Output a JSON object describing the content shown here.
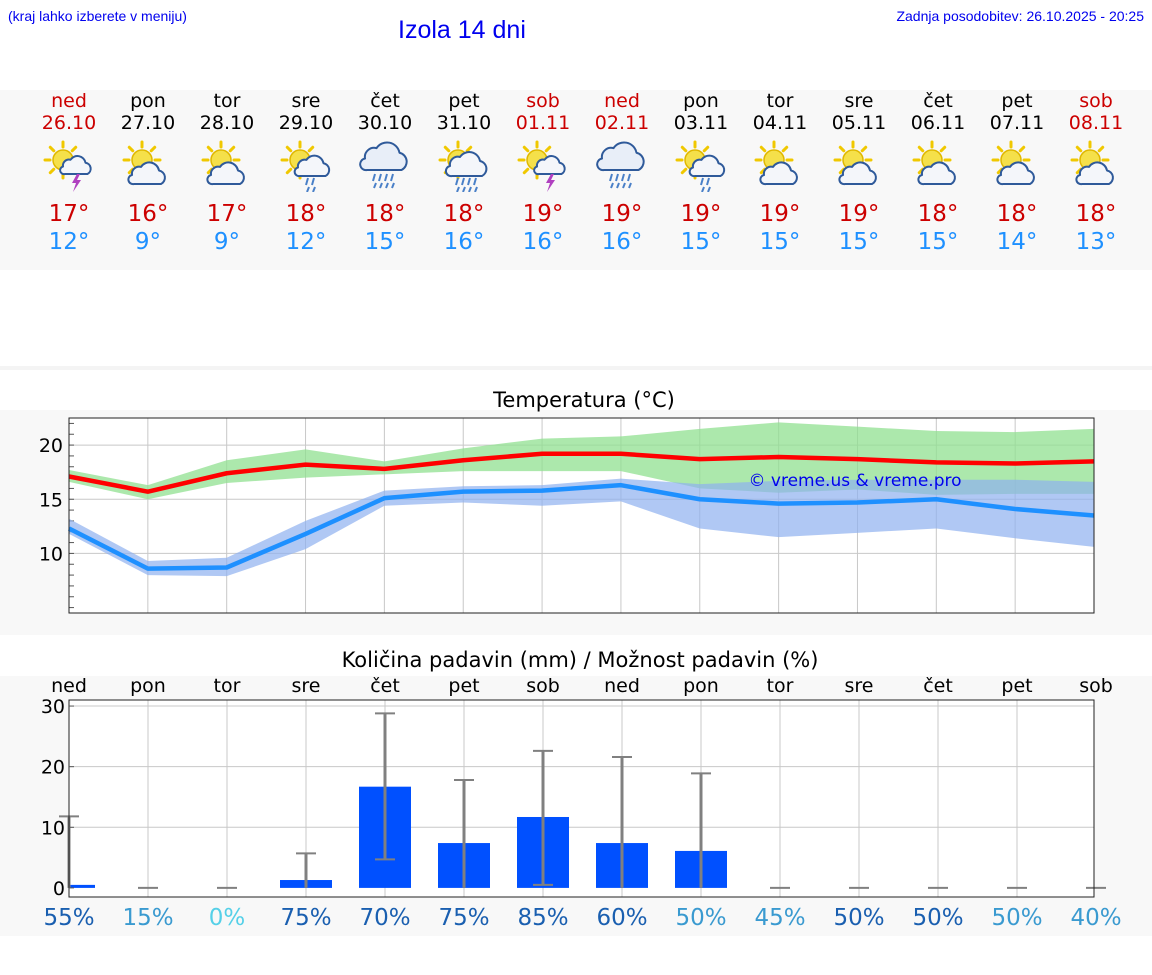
{
  "header": {
    "menu_hint": "(kraj lahko izberete v meniju)",
    "title": "Izola 14 dni",
    "updated": "Zadnja posodobitev: 26.10.2025 - 20:25"
  },
  "colors": {
    "weekday": "#000000",
    "weekend": "#cc0000",
    "tmax": "#cc0000",
    "tmin": "#1e90ff",
    "max_line": "#ff0000",
    "min_line": "#1e90ff",
    "max_band": "#90e090",
    "min_band": "#8fb0f0",
    "bar": "#0050ff",
    "errorbar": "#808080",
    "link": "#0000ee"
  },
  "days": [
    {
      "name": "ned",
      "date": "26.10",
      "weekend": true,
      "icon": "sun-cloud-thunder-icon",
      "tmax": "17°",
      "tmin": "12°"
    },
    {
      "name": "pon",
      "date": "27.10",
      "weekend": false,
      "icon": "sun-cloud-icon",
      "tmax": "16°",
      "tmin": "9°"
    },
    {
      "name": "tor",
      "date": "28.10",
      "weekend": false,
      "icon": "sun-cloud-icon",
      "tmax": "17°",
      "tmin": "9°"
    },
    {
      "name": "sre",
      "date": "29.10",
      "weekend": false,
      "icon": "sun-cloud-rain-icon",
      "tmax": "18°",
      "tmin": "12°"
    },
    {
      "name": "čet",
      "date": "30.10",
      "weekend": false,
      "icon": "cloud-heavy-rain-icon",
      "tmax": "18°",
      "tmin": "15°"
    },
    {
      "name": "pet",
      "date": "31.10",
      "weekend": false,
      "icon": "sun-cloud-heavy-rain-icon",
      "tmax": "18°",
      "tmin": "16°"
    },
    {
      "name": "sob",
      "date": "01.11",
      "weekend": true,
      "icon": "sun-cloud-thunder-icon",
      "tmax": "19°",
      "tmin": "16°"
    },
    {
      "name": "ned",
      "date": "02.11",
      "weekend": true,
      "icon": "cloud-heavy-rain-icon",
      "tmax": "19°",
      "tmin": "16°"
    },
    {
      "name": "pon",
      "date": "03.11",
      "weekend": false,
      "icon": "sun-cloud-rain-icon",
      "tmax": "19°",
      "tmin": "15°"
    },
    {
      "name": "tor",
      "date": "04.11",
      "weekend": false,
      "icon": "sun-cloud-icon",
      "tmax": "19°",
      "tmin": "15°"
    },
    {
      "name": "sre",
      "date": "05.11",
      "weekend": false,
      "icon": "sun-cloud-icon",
      "tmax": "19°",
      "tmin": "15°"
    },
    {
      "name": "čet",
      "date": "06.11",
      "weekend": false,
      "icon": "sun-cloud-icon",
      "tmax": "18°",
      "tmin": "15°"
    },
    {
      "name": "pet",
      "date": "07.11",
      "weekend": false,
      "icon": "sun-cloud-icon",
      "tmax": "18°",
      "tmin": "14°"
    },
    {
      "name": "sob",
      "date": "08.11",
      "weekend": true,
      "icon": "sun-cloud-icon",
      "tmax": "18°",
      "tmin": "13°"
    }
  ],
  "chart_data": [
    {
      "type": "line",
      "title": "Temperatura (°C)",
      "watermark": "© vreme.us & vreme.pro",
      "ylim": [
        4.5,
        22.5
      ],
      "yticks": [
        10,
        15,
        20
      ],
      "grid": true,
      "x": [
        "26.10",
        "27.10",
        "28.10",
        "29.10",
        "30.10",
        "31.10",
        "01.11",
        "02.11",
        "03.11",
        "04.11",
        "05.11",
        "06.11",
        "07.11",
        "08.11"
      ],
      "series": [
        {
          "role": "max",
          "values": [
            17.1,
            15.7,
            17.4,
            18.2,
            17.8,
            18.6,
            19.2,
            19.2,
            18.7,
            18.9,
            18.7,
            18.4,
            18.3,
            18.5
          ],
          "band_low": [
            16.6,
            15.0,
            16.5,
            17.0,
            17.3,
            17.6,
            17.6,
            17.6,
            16.0,
            15.6,
            15.9,
            15.4,
            15.5,
            15.5
          ],
          "band_high": [
            17.7,
            16.3,
            18.6,
            19.6,
            18.5,
            19.7,
            20.6,
            20.8,
            21.5,
            22.1,
            21.7,
            21.3,
            21.2,
            21.5
          ]
        },
        {
          "role": "min",
          "values": [
            12.3,
            8.6,
            8.7,
            11.8,
            15.1,
            15.7,
            15.8,
            16.3,
            15.0,
            14.6,
            14.7,
            15.0,
            14.1,
            13.5
          ],
          "band_low": [
            11.8,
            8.0,
            7.9,
            10.4,
            14.4,
            14.7,
            14.4,
            14.8,
            12.3,
            11.5,
            11.9,
            12.3,
            11.4,
            10.6
          ],
          "band_high": [
            13.2,
            9.3,
            9.6,
            13.0,
            15.8,
            16.2,
            16.3,
            16.9,
            16.4,
            16.7,
            16.8,
            16.8,
            16.8,
            16.6
          ]
        }
      ]
    },
    {
      "type": "bar",
      "title": "Količina padavin (mm) / Možnost padavin (%)",
      "categories": [
        "ned",
        "pon",
        "tor",
        "sre",
        "čet",
        "pet",
        "sob",
        "ned",
        "pon",
        "tor",
        "sre",
        "čet",
        "pet",
        "sob"
      ],
      "values": [
        0.5,
        0,
        0,
        1.3,
        16.7,
        7.4,
        11.7,
        7.4,
        6.1,
        0,
        0,
        0,
        0,
        0
      ],
      "error_high": [
        11.8,
        0,
        0,
        5.7,
        28.8,
        17.8,
        22.6,
        21.6,
        18.9,
        0,
        0,
        0,
        0,
        0
      ],
      "error_low": [
        0,
        0,
        0,
        0,
        4.7,
        0,
        0.5,
        0,
        0,
        0,
        0,
        0,
        0,
        0
      ],
      "ylim": [
        -1.5,
        31
      ],
      "yticks": [
        0,
        10,
        20,
        30
      ],
      "grid": true,
      "probability": [
        "55%",
        "15%",
        "0%",
        "75%",
        "70%",
        "75%",
        "85%",
        "60%",
        "50%",
        "45%",
        "50%",
        "50%",
        "50%",
        "40%"
      ],
      "probability_colors": [
        "#1a5fb0",
        "#3a9ad0",
        "#55d0e8",
        "#1a5fb0",
        "#1a5fb0",
        "#1a5fb0",
        "#1a5fb0",
        "#1a5fb0",
        "#3a9ad0",
        "#3a9ad0",
        "#1a5fb0",
        "#1a5fb0",
        "#3a9ad0",
        "#3a9ad0"
      ]
    }
  ]
}
